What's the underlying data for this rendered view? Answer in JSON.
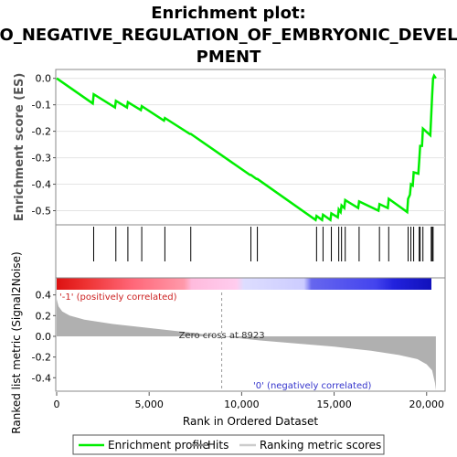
{
  "chart_data": {
    "type": "line",
    "title_lines": [
      "Enrichment plot:",
      "GO_NEGATIVE_REGULATION_OF_EMBRYONIC_DEVELO",
      "PMENT"
    ],
    "es_panel": {
      "ylabel": "Enrichment score (ES)",
      "ylim": [
        -0.55,
        0.03
      ],
      "yticks": [
        0.0,
        -0.1,
        -0.2,
        -0.3,
        -0.4,
        -0.5
      ],
      "ytick_labels": [
        "0.0",
        "-0.1",
        "-0.2",
        "-0.3",
        "-0.4",
        "-0.5"
      ],
      "color": "#00ee00",
      "points": [
        [
          0,
          0.0
        ],
        [
          1950,
          -0.095
        ],
        [
          2000,
          -0.06
        ],
        [
          3150,
          -0.11
        ],
        [
          3200,
          -0.085
        ],
        [
          3800,
          -0.11
        ],
        [
          3850,
          -0.09
        ],
        [
          4550,
          -0.12
        ],
        [
          4600,
          -0.105
        ],
        [
          5800,
          -0.16
        ],
        [
          5850,
          -0.15
        ],
        [
          7200,
          -0.21
        ],
        [
          7250,
          -0.21
        ],
        [
          10450,
          -0.365
        ],
        [
          10500,
          -0.365
        ],
        [
          10800,
          -0.38
        ],
        [
          10850,
          -0.38
        ],
        [
          14000,
          -0.535
        ],
        [
          14050,
          -0.52
        ],
        [
          14350,
          -0.535
        ],
        [
          14400,
          -0.515
        ],
        [
          14800,
          -0.535
        ],
        [
          14850,
          -0.51
        ],
        [
          15200,
          -0.525
        ],
        [
          15250,
          -0.495
        ],
        [
          15350,
          -0.505
        ],
        [
          15400,
          -0.48
        ],
        [
          15550,
          -0.49
        ],
        [
          15600,
          -0.46
        ],
        [
          16300,
          -0.49
        ],
        [
          16350,
          -0.465
        ],
        [
          17400,
          -0.5
        ],
        [
          17450,
          -0.475
        ],
        [
          17900,
          -0.49
        ],
        [
          17950,
          -0.455
        ],
        [
          18950,
          -0.505
        ],
        [
          19000,
          -0.455
        ],
        [
          19100,
          -0.44
        ],
        [
          19150,
          -0.4
        ],
        [
          19250,
          -0.405
        ],
        [
          19300,
          -0.355
        ],
        [
          19550,
          -0.36
        ],
        [
          19600,
          -0.31
        ],
        [
          19650,
          -0.255
        ],
        [
          19750,
          -0.255
        ],
        [
          19800,
          -0.19
        ],
        [
          20200,
          -0.215
        ],
        [
          20250,
          -0.14
        ],
        [
          20300,
          -0.065
        ],
        [
          20350,
          0.0
        ],
        [
          20400,
          0.01
        ],
        [
          20500,
          0.0
        ]
      ]
    },
    "hits_panel": {
      "hit_positions": [
        2000,
        3200,
        3850,
        4600,
        5850,
        7250,
        10500,
        10850,
        14050,
        14400,
        14850,
        15250,
        15400,
        15600,
        16350,
        17450,
        17950,
        19000,
        19150,
        19300,
        19600,
        19650,
        19800,
        20250,
        20300,
        20350
      ]
    },
    "rank_panel": {
      "ylabel": "Ranked list metric (Signal2Noise)",
      "xlabel": "Rank in Ordered Dataset",
      "ylim": [
        -0.53,
        0.45
      ],
      "yticks": [
        0.4,
        0.2,
        0.0,
        -0.2,
        -0.4
      ],
      "ytick_labels": [
        "0.4",
        "0.2",
        "0.0",
        "-0.2",
        "-0.4"
      ],
      "xlim": [
        0,
        21000
      ],
      "xticks": [
        0,
        5000,
        10000,
        15000,
        20000
      ],
      "xtick_labels": [
        "0",
        "5,000",
        "10,000",
        "15,000",
        "20,000"
      ],
      "n_genes": 20500,
      "zero_cross": 8923,
      "zero_cross_label": "Zero cross at 8923",
      "pos_label": "'-1' (positively correlated)",
      "neg_label": "'0' (negatively correlated)",
      "metric_curve": [
        [
          0,
          0.36
        ],
        [
          100,
          0.29
        ],
        [
          300,
          0.24
        ],
        [
          700,
          0.2
        ],
        [
          1500,
          0.16
        ],
        [
          3000,
          0.12
        ],
        [
          5000,
          0.08
        ],
        [
          7000,
          0.04
        ],
        [
          8923,
          0.0
        ],
        [
          11000,
          -0.04
        ],
        [
          13000,
          -0.07
        ],
        [
          15000,
          -0.1
        ],
        [
          17000,
          -0.14
        ],
        [
          18500,
          -0.18
        ],
        [
          19500,
          -0.22
        ],
        [
          20000,
          -0.27
        ],
        [
          20300,
          -0.33
        ],
        [
          20450,
          -0.45
        ],
        [
          20500,
          -0.52
        ]
      ]
    },
    "legend": {
      "items": [
        "Enrichment profile",
        "Hits",
        "Ranking metric scores"
      ]
    }
  }
}
